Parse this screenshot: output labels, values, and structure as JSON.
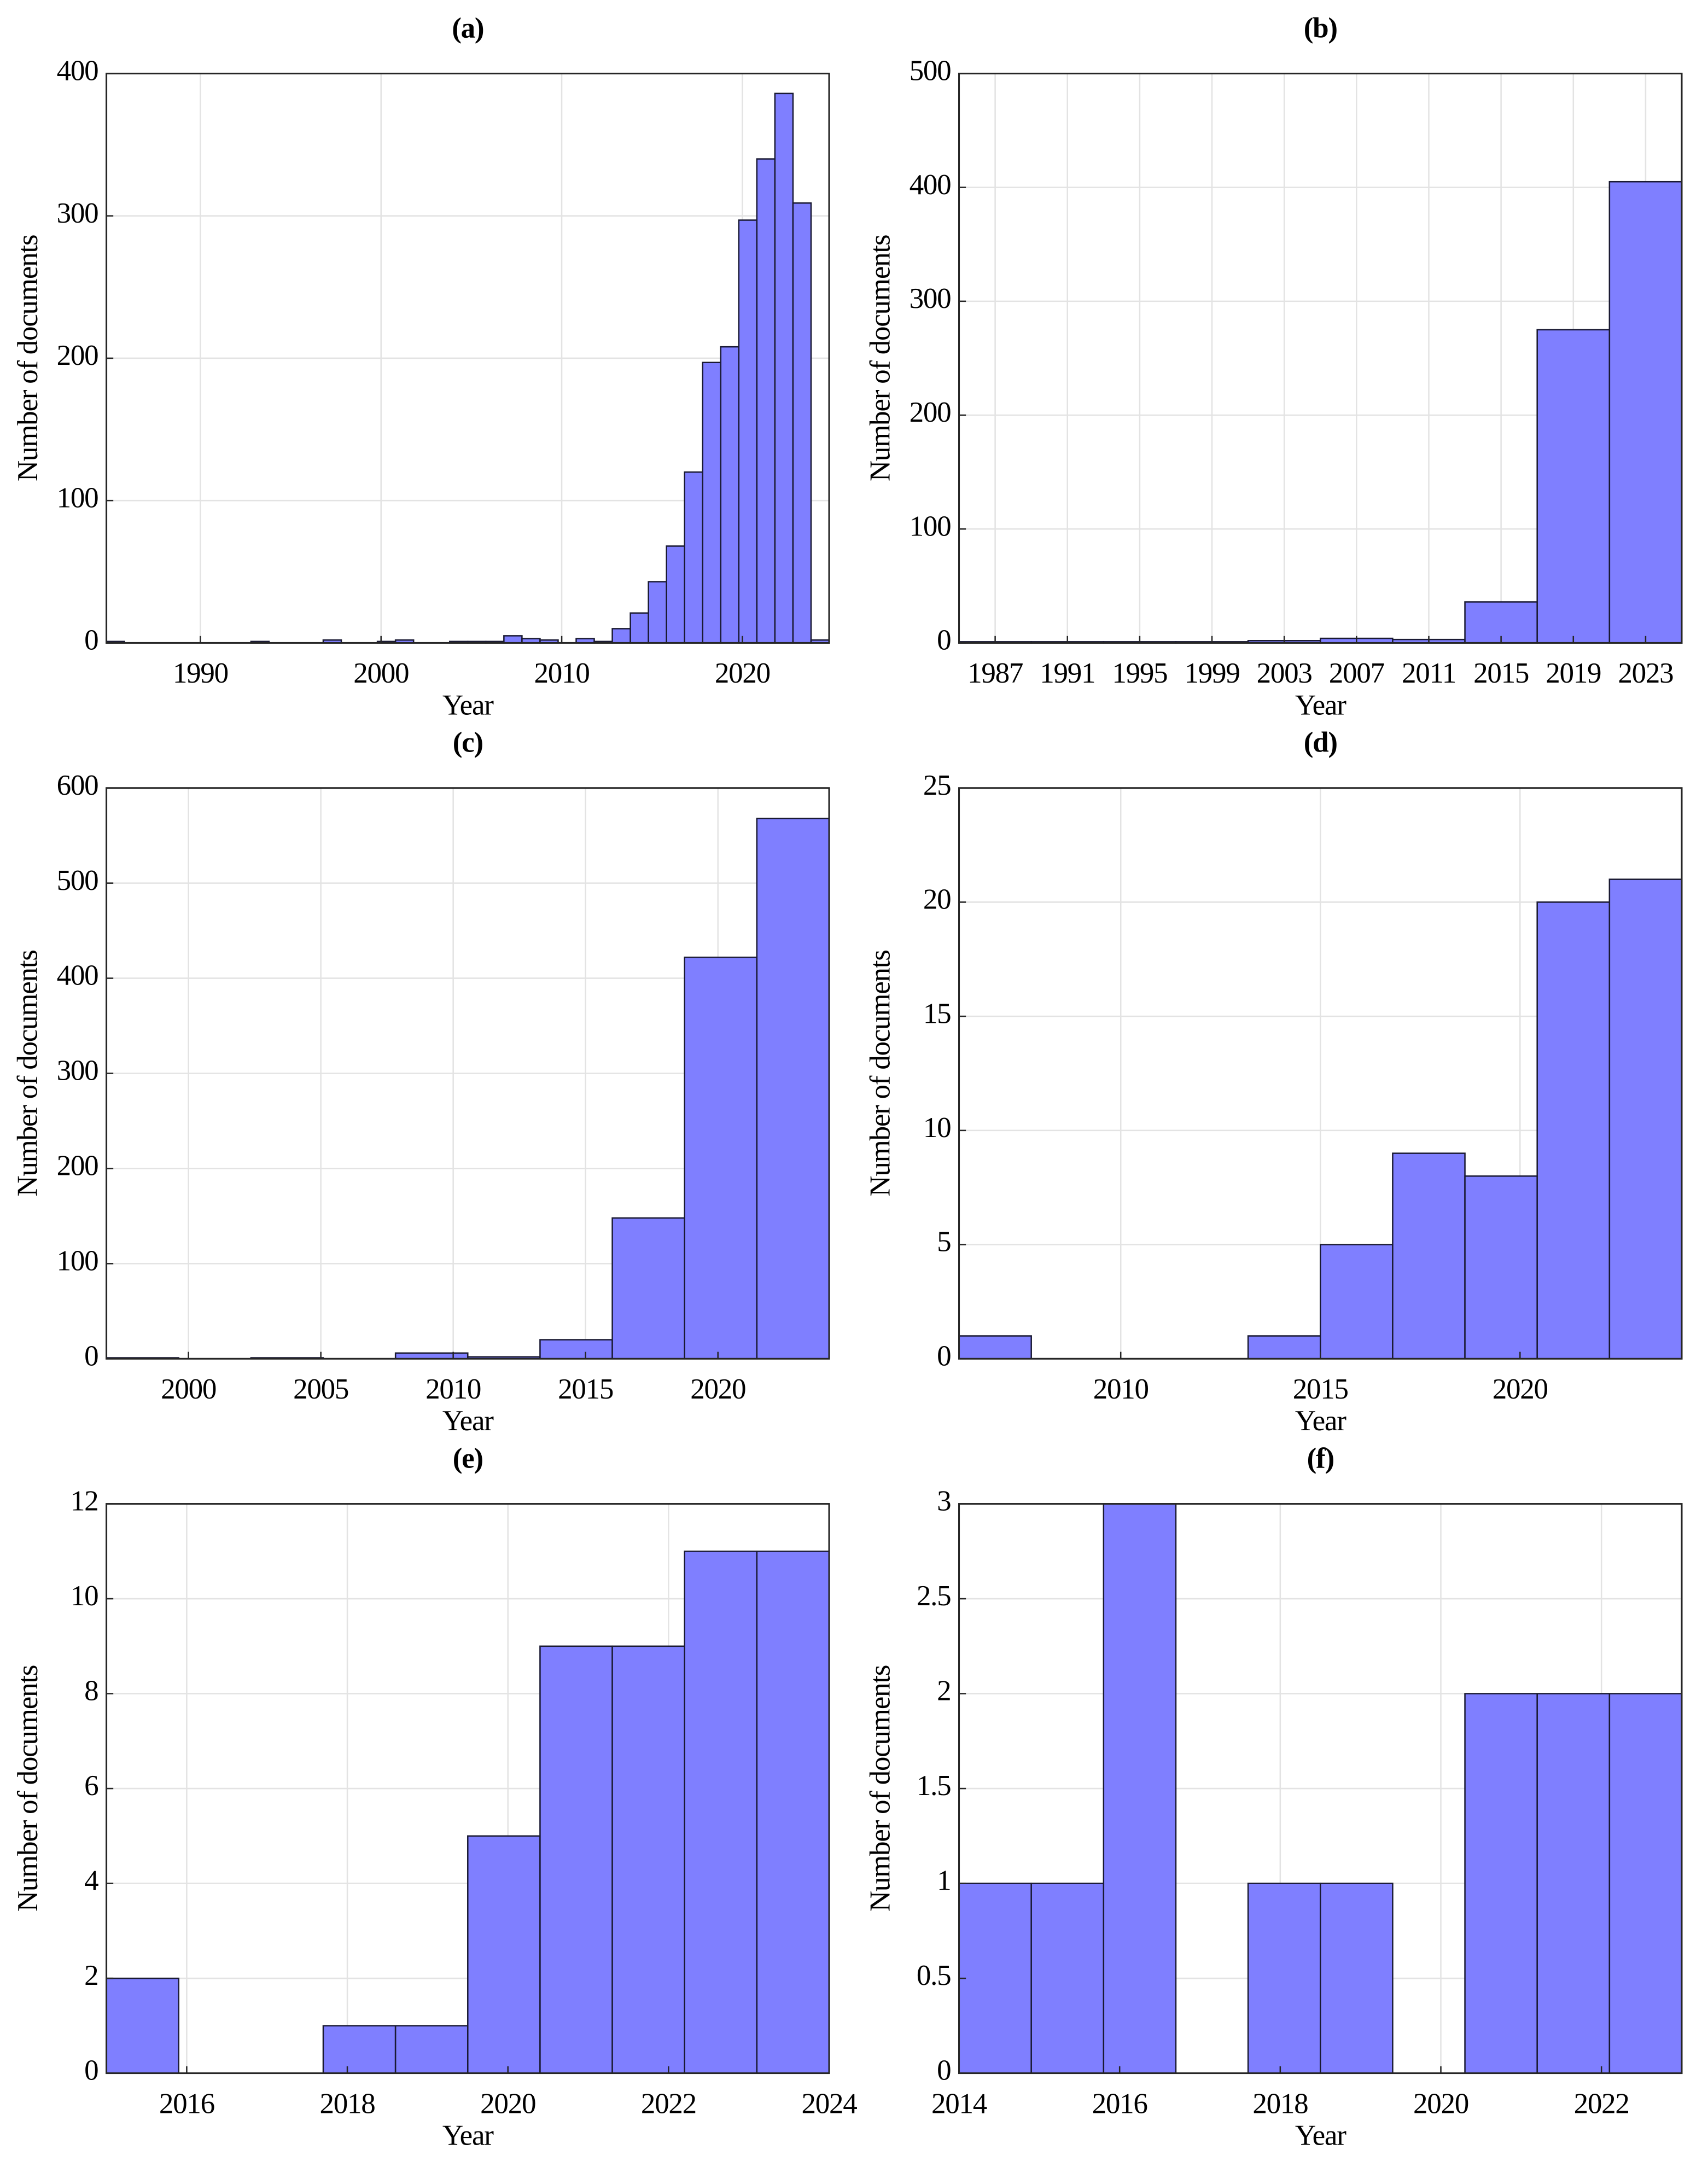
{
  "chart_data": [
    {
      "type": "histogram",
      "title": "(a)",
      "x_label": "Year",
      "y_label": "Number of documents",
      "color": "#7f7fff",
      "grid": true,
      "bins": [
        1984.8,
        1985.8,
        1986.8,
        1987.8,
        1988.8,
        1989.8,
        1990.8,
        1991.8,
        1992.8,
        1993.8,
        1994.8,
        1995.8,
        1996.8,
        1997.8,
        1998.8,
        1999.8,
        2000.8,
        2001.8,
        2002.8,
        2003.8,
        2004.8,
        2005.8,
        2006.8,
        2007.8,
        2008.8,
        2009.8,
        2010.8,
        2011.8,
        2012.8,
        2013.8,
        2014.8,
        2015.8,
        2016.8,
        2017.8,
        2018.8,
        2019.8,
        2020.8,
        2021.8,
        2022.8,
        2023.8,
        2024.8
      ],
      "values": [
        1,
        0,
        0,
        0,
        0,
        0,
        0,
        0,
        1,
        0,
        0,
        0,
        2,
        0,
        0,
        1,
        2,
        0,
        0,
        1,
        1,
        1,
        5,
        3,
        2,
        0,
        3,
        1,
        10,
        21,
        43,
        68,
        120,
        197,
        208,
        297,
        340,
        386,
        309,
        2
      ],
      "xlim": [
        1984.8,
        2024.8
      ],
      "xticks": [
        1990,
        2000,
        2010,
        2020
      ],
      "ylim": [
        0,
        400
      ],
      "yticks": [
        0,
        100,
        200,
        300,
        400
      ]
    },
    {
      "type": "histogram",
      "title": "(b)",
      "x_label": "Year",
      "y_label": "Number of documents",
      "color": "#7f7fff",
      "grid": true,
      "bins": [
        1985,
        1989,
        1993,
        1997,
        2001,
        2005,
        2009,
        2013,
        2017,
        2021,
        2025
      ],
      "values": [
        1,
        1,
        1,
        1,
        2,
        4,
        3,
        36,
        275,
        405
      ],
      "xlim": [
        1985,
        2025
      ],
      "xticks": [
        1987,
        1991,
        1995,
        1999,
        2003,
        2007,
        2011,
        2015,
        2019,
        2023
      ],
      "ylim": [
        0,
        500
      ],
      "yticks": [
        0,
        100,
        200,
        300,
        400,
        500
      ]
    },
    {
      "type": "histogram",
      "title": "(c)",
      "x_label": "Year",
      "y_label": "Number of documents",
      "color": "#7f7fff",
      "grid": true,
      "bins": [
        1996.9,
        1999.63,
        2002.36,
        2005.09,
        2007.82,
        2010.55,
        2013.28,
        2016.01,
        2018.74,
        2021.47,
        2024.2
      ],
      "values": [
        1,
        0,
        1,
        0,
        6,
        2,
        20,
        148,
        422,
        568
      ],
      "xlim": [
        1996.9,
        2024.2
      ],
      "xticks": [
        2000,
        2005,
        2010,
        2015,
        2020
      ],
      "ylim": [
        0,
        600
      ],
      "yticks": [
        0,
        100,
        200,
        300,
        400,
        500,
        600
      ]
    },
    {
      "type": "histogram",
      "title": "(d)",
      "x_label": "Year",
      "y_label": "Number of documents",
      "color": "#7f7fff",
      "grid": true,
      "bins": [
        2005.95,
        2007.76,
        2009.57,
        2011.38,
        2013.19,
        2015.0,
        2016.81,
        2018.62,
        2020.43,
        2022.24,
        2024.05
      ],
      "values": [
        1,
        0,
        0,
        0,
        1,
        5,
        9,
        8,
        20,
        21
      ],
      "xlim": [
        2005.95,
        2024.05
      ],
      "xticks": [
        2010,
        2015,
        2020
      ],
      "ylim": [
        0,
        25
      ],
      "yticks": [
        0,
        5,
        10,
        15,
        20,
        25
      ]
    },
    {
      "type": "histogram",
      "title": "(e)",
      "x_label": "Year",
      "y_label": "Number of documents",
      "color": "#7f7fff",
      "grid": true,
      "bins": [
        2015,
        2015.9,
        2016.8,
        2017.7,
        2018.6,
        2019.5,
        2020.4,
        2021.3,
        2022.2,
        2023.1,
        2024
      ],
      "values": [
        2,
        0,
        0,
        1,
        1,
        5,
        9,
        9,
        11,
        11
      ],
      "xlim": [
        2015,
        2024
      ],
      "xticks": [
        2016,
        2018,
        2020,
        2022,
        2024
      ],
      "ylim": [
        0,
        12
      ],
      "yticks": [
        0,
        2,
        4,
        6,
        8,
        10,
        12
      ]
    },
    {
      "type": "histogram",
      "title": "(f)",
      "x_label": "Year",
      "y_label": "Number of documents",
      "color": "#7f7fff",
      "grid": true,
      "bins": [
        2014,
        2014.9,
        2015.8,
        2016.7,
        2017.6,
        2018.5,
        2019.4,
        2020.3,
        2021.2,
        2022.1,
        2023
      ],
      "values": [
        1,
        1,
        3,
        0,
        1,
        1,
        0,
        2,
        2,
        2
      ],
      "xlim": [
        2014,
        2023
      ],
      "xticks": [
        2014,
        2016,
        2018,
        2020,
        2022
      ],
      "ylim": [
        0,
        3
      ],
      "yticks": [
        0,
        0.5,
        1,
        1.5,
        2,
        2.5,
        3
      ]
    }
  ]
}
